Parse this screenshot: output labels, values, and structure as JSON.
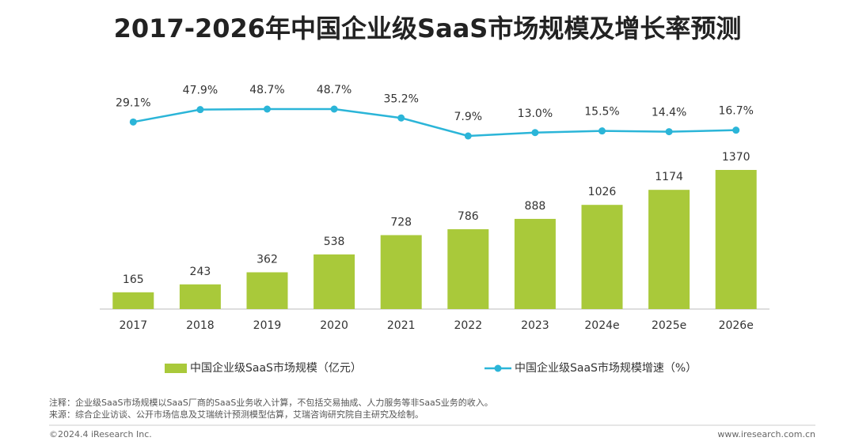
{
  "chart_data": {
    "type": "bar-line",
    "title": "2017-2026年中国企业级SaaS市场规模及增长率预测",
    "categories": [
      "2017",
      "2018",
      "2019",
      "2020",
      "2021",
      "2022",
      "2023",
      "2024e",
      "2025e",
      "2026e"
    ],
    "series": [
      {
        "name": "中国企业级SaaS市场规模（亿元）",
        "type": "bar",
        "color": "#a9c93a",
        "values": [
          165,
          243,
          362,
          538,
          728,
          786,
          888,
          1026,
          1174,
          1370
        ]
      },
      {
        "name": "中国企业级SaaS市场规模增速（%）",
        "type": "line",
        "axis": "y2",
        "color": "#2bb5d8",
        "values": [
          29.1,
          47.9,
          48.7,
          48.7,
          35.2,
          7.9,
          13.0,
          15.5,
          14.4,
          16.7
        ],
        "value_labels": [
          "29.1%",
          "47.9%",
          "48.7%",
          "48.7%",
          "35.2%",
          "7.9%",
          "13.0%",
          "15.5%",
          "14.4%",
          "16.7%"
        ]
      }
    ],
    "legend": "bottom"
  },
  "footer": {
    "notes": [
      "注释：企业级SaaS市场规模以SaaS厂商的SaaS业务收入计算，不包括交易抽成、人力服务等非SaaS业务的收入。",
      "来源：综合企业访谈、公开市场信息及艾瑞统计预测模型估算，艾瑞咨询研究院自主研究及绘制。"
    ],
    "copyright": "©2024.4 iResearch Inc.",
    "url": "www.iresearch.com.cn"
  }
}
